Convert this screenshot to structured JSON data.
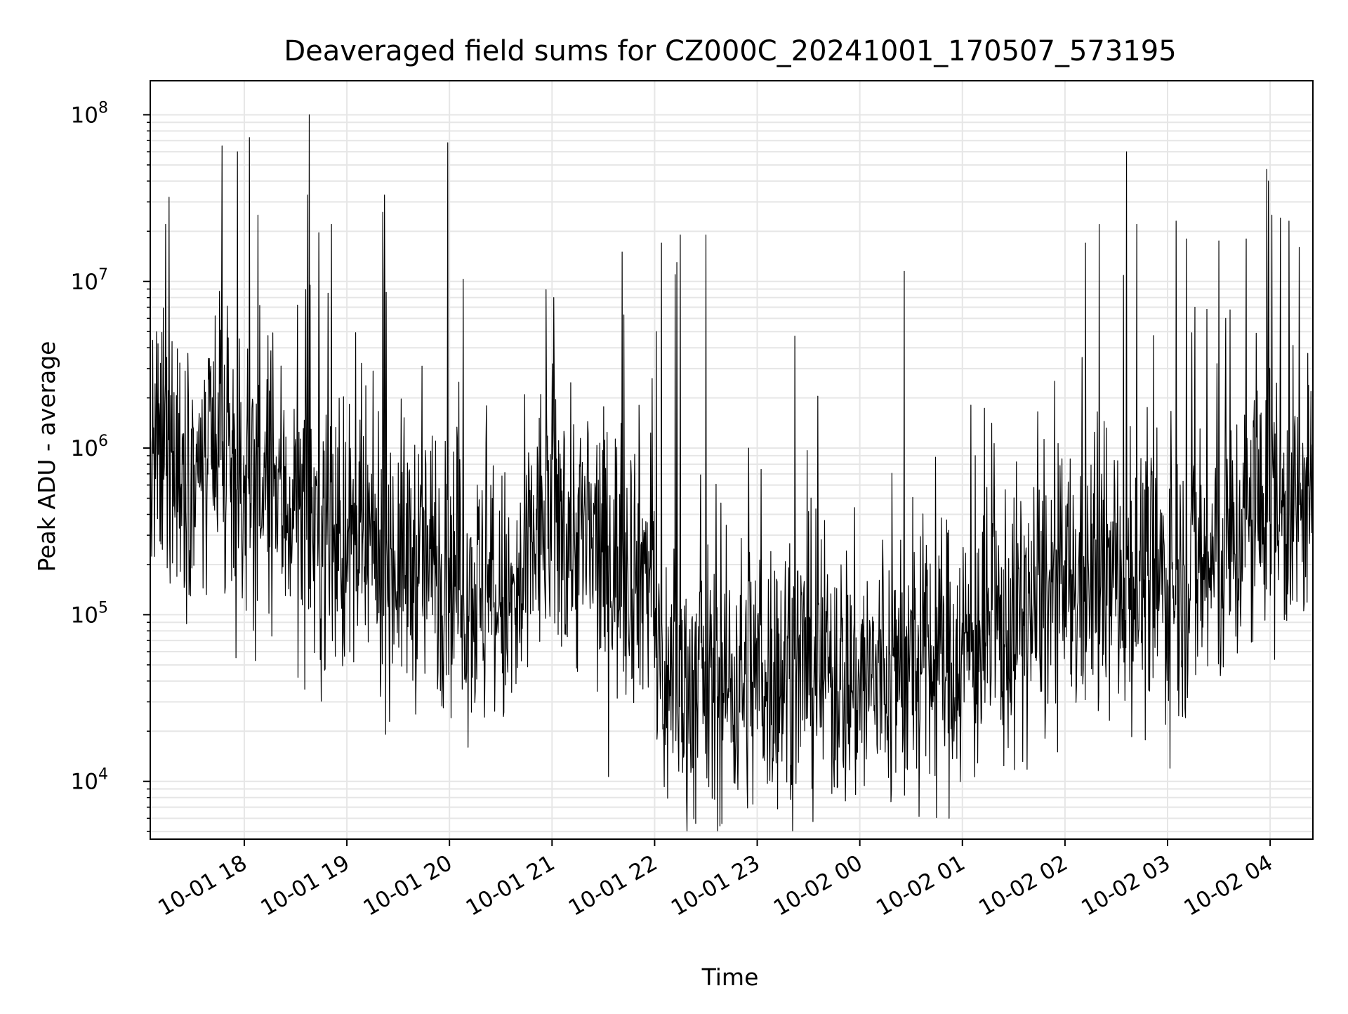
{
  "chart_data": {
    "type": "line",
    "title": "Deaveraged field sums for CZ000C_20241001_170507_573195",
    "xlabel": "Time",
    "ylabel": "Peak ADU - average",
    "yscale": "log",
    "grid": true,
    "line_color": "#000000",
    "grid_color": "#e6e6e6",
    "xlim": [
      "2024-10-01 17:05",
      "2024-10-02 04:25"
    ],
    "ylim": [
      4500,
      160000000
    ],
    "x_ticks": [
      {
        "value": "2024-10-01 18:00",
        "label": "10-01 18"
      },
      {
        "value": "2024-10-01 19:00",
        "label": "10-01 19"
      },
      {
        "value": "2024-10-01 20:00",
        "label": "10-01 20"
      },
      {
        "value": "2024-10-01 21:00",
        "label": "10-01 21"
      },
      {
        "value": "2024-10-01 22:00",
        "label": "10-01 22"
      },
      {
        "value": "2024-10-01 23:00",
        "label": "10-01 23"
      },
      {
        "value": "2024-10-02 00:00",
        "label": "10-02 00"
      },
      {
        "value": "2024-10-02 01:00",
        "label": "10-02 01"
      },
      {
        "value": "2024-10-02 02:00",
        "label": "10-02 02"
      },
      {
        "value": "2024-10-02 03:00",
        "label": "10-02 03"
      },
      {
        "value": "2024-10-02 04:00",
        "label": "10-02 04"
      }
    ],
    "y_ticks": [
      {
        "value": 10000,
        "base": "10",
        "exp": "4"
      },
      {
        "value": 100000,
        "base": "10",
        "exp": "5"
      },
      {
        "value": 1000000,
        "base": "10",
        "exp": "6"
      },
      {
        "value": 10000000,
        "base": "10",
        "exp": "7"
      },
      {
        "value": 100000000,
        "base": "10",
        "exp": "8"
      }
    ],
    "series": [
      {
        "baseline": [
          [
            "2024-10-01 17:05",
            700000
          ],
          [
            "2024-10-01 17:15",
            900000
          ],
          [
            "2024-10-01 17:30",
            700000
          ],
          [
            "2024-10-01 18:00",
            600000
          ],
          [
            "2024-10-01 18:30",
            450000
          ],
          [
            "2024-10-01 19:00",
            250000
          ],
          [
            "2024-10-01 19:30",
            220000
          ],
          [
            "2024-10-01 20:00",
            200000
          ],
          [
            "2024-10-01 20:20",
            120000
          ],
          [
            "2024-10-01 20:40",
            100000
          ],
          [
            "2024-10-01 20:50",
            300000
          ],
          [
            "2024-10-01 21:00",
            400000
          ],
          [
            "2024-10-01 21:30",
            220000
          ],
          [
            "2024-10-01 21:58",
            200000
          ],
          [
            "2024-10-01 22:02",
            40000
          ],
          [
            "2024-10-01 22:30",
            35000
          ],
          [
            "2024-10-01 23:00",
            45000
          ],
          [
            "2024-10-01 23:30",
            50000
          ],
          [
            "2024-10-02 00:00",
            40000
          ],
          [
            "2024-10-02 00:30",
            45000
          ],
          [
            "2024-10-02 01:00",
            60000
          ],
          [
            "2024-10-02 01:30",
            90000
          ],
          [
            "2024-10-02 02:00",
            140000
          ],
          [
            "2024-10-02 02:30",
            160000
          ],
          [
            "2024-10-02 03:00",
            150000
          ],
          [
            "2024-10-02 03:30",
            200000
          ],
          [
            "2024-10-02 04:00",
            500000
          ],
          [
            "2024-10-02 04:20",
            350000
          ],
          [
            "2024-10-02 04:25",
            300000
          ]
        ],
        "spikes": [
          [
            "2024-10-01 17:14",
            22000000
          ],
          [
            "2024-10-01 17:16",
            32000000
          ],
          [
            "2024-10-01 17:27",
            3700000
          ],
          [
            "2024-10-01 17:42",
            3300000
          ],
          [
            "2024-10-01 17:47",
            65000000
          ],
          [
            "2024-10-01 17:56",
            60000000
          ],
          [
            "2024-10-01 18:03",
            73000000
          ],
          [
            "2024-10-01 18:08",
            25000000
          ],
          [
            "2024-10-01 18:38",
            100000000
          ],
          [
            "2024-10-01 18:37",
            33000000
          ],
          [
            "2024-10-01 18:51",
            22000000
          ],
          [
            "2024-10-01 18:49",
            8500000
          ],
          [
            "2024-10-01 19:21",
            26000000
          ],
          [
            "2024-10-01 19:22",
            33000000
          ],
          [
            "2024-10-01 19:23",
            8600000
          ],
          [
            "2024-10-01 19:59",
            68000000
          ],
          [
            "2024-10-01 21:01",
            8000000
          ],
          [
            "2024-10-01 21:41",
            15000000
          ],
          [
            "2024-10-01 21:42",
            6300000
          ],
          [
            "2024-10-01 22:01",
            5000000
          ],
          [
            "2024-10-01 22:04",
            17000000
          ],
          [
            "2024-10-01 22:12",
            11000000
          ],
          [
            "2024-10-01 22:13",
            13000000
          ],
          [
            "2024-10-01 22:15",
            19000000
          ],
          [
            "2024-10-01 22:30",
            19000000
          ],
          [
            "2024-10-01 22:55",
            1000000
          ],
          [
            "2024-10-01 23:22",
            4700000
          ],
          [
            "2024-10-02 00:26",
            11500000
          ],
          [
            "2024-10-02 02:10",
            3500000
          ],
          [
            "2024-10-02 02:12",
            17000000
          ],
          [
            "2024-10-02 02:20",
            22000000
          ],
          [
            "2024-10-02 02:36",
            60000000
          ],
          [
            "2024-10-02 02:42",
            22000000
          ],
          [
            "2024-10-02 03:05",
            23000000
          ],
          [
            "2024-10-02 03:11",
            18000000
          ],
          [
            "2024-10-02 03:16",
            7000000
          ],
          [
            "2024-10-02 03:23",
            6800000
          ],
          [
            "2024-10-02 03:30",
            17500000
          ],
          [
            "2024-10-02 03:34",
            6000000
          ],
          [
            "2024-10-02 03:46",
            18000000
          ],
          [
            "2024-10-02 03:58",
            47000000
          ],
          [
            "2024-10-02 03:59",
            40000000
          ],
          [
            "2024-10-02 04:01",
            25000000
          ],
          [
            "2024-10-02 04:06",
            24000000
          ],
          [
            "2024-10-02 04:11",
            23000000
          ],
          [
            "2024-10-02 04:17",
            16000000
          ],
          [
            "2024-10-02 04:22",
            3700000
          ]
        ]
      }
    ]
  }
}
